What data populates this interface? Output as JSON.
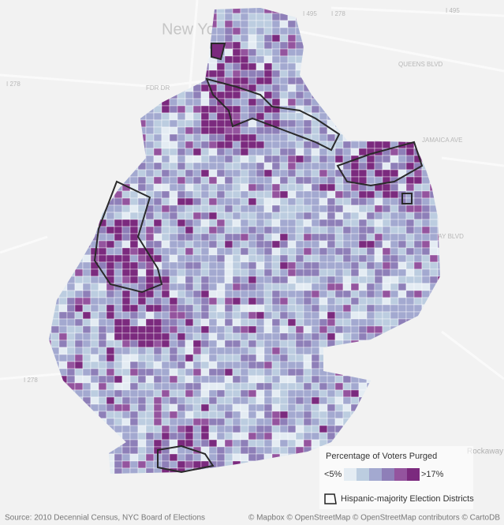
{
  "map": {
    "place_labels": [
      "New York",
      "I 495",
      "I 278",
      "I 278",
      "I 495",
      "FDR DR",
      "QUEENS BLVD",
      "JAMAICA AVE",
      "ROCKAWAY BLVD",
      "Rockaway Point",
      "I 278"
    ],
    "legend": {
      "title": "Percentage of Voters Purged",
      "low_label": "<5%",
      "high_label": ">17%",
      "colors": [
        "#e4ecf3",
        "#bccde0",
        "#a3a9d0",
        "#8e7fb8",
        "#94549e",
        "#7b2a7e"
      ]
    },
    "outline_legend": "Hispanic-majority Election Districts",
    "source": "Source: 2010 Decennial Census, NYC Board of Elections",
    "attribution": "© Mapbox © OpenStreetMap © OpenStreetMap contributors © CartoDB"
  }
}
